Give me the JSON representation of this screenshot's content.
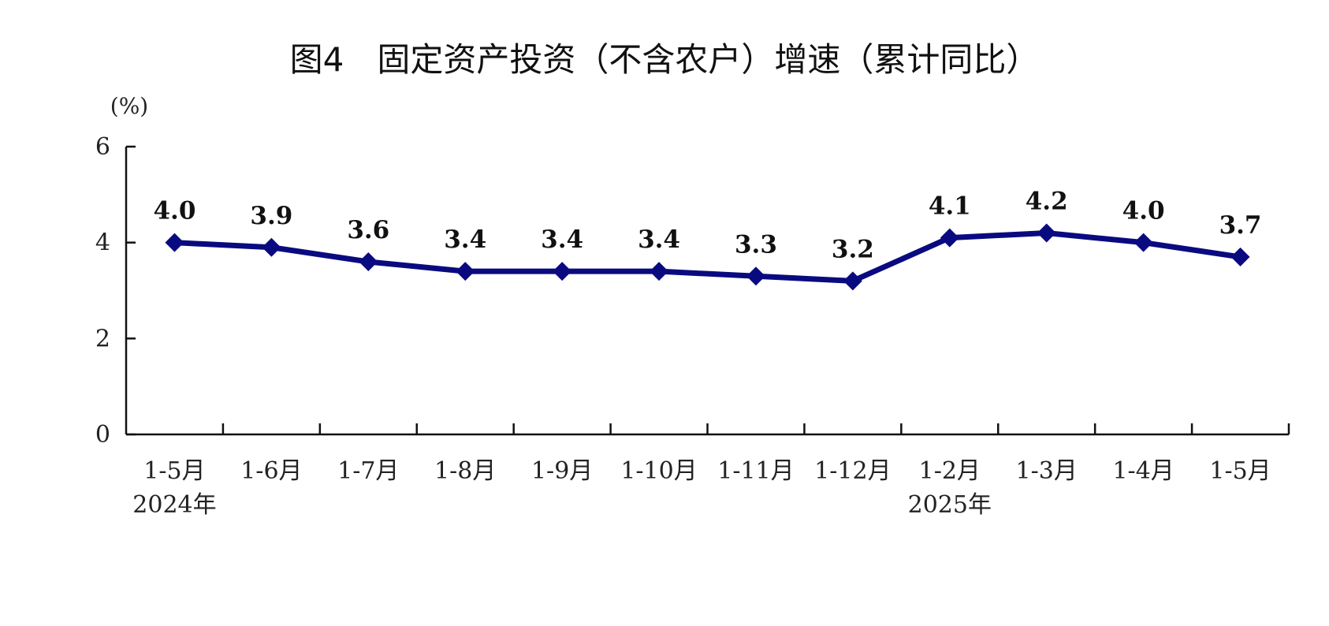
{
  "chart_data": {
    "type": "line",
    "title": "图4　固定资产投资（不含农户）增速（累计同比）",
    "y_unit": "(%)",
    "categories": [
      "1-5月",
      "1-6月",
      "1-7月",
      "1-8月",
      "1-9月",
      "1-10月",
      "1-11月",
      "1-12月",
      "1-2月",
      "1-3月",
      "1-4月",
      "1-5月"
    ],
    "year_labels": [
      {
        "category_index": 0,
        "text": "2024年"
      },
      {
        "category_index": 8,
        "text": "2025年"
      }
    ],
    "series": [
      {
        "values": [
          4.0,
          3.9,
          3.6,
          3.4,
          3.4,
          3.4,
          3.3,
          3.2,
          4.1,
          4.2,
          4.0,
          3.7
        ],
        "labels": [
          "4.0",
          "3.9",
          "3.6",
          "3.4",
          "3.4",
          "3.4",
          "3.3",
          "3.2",
          "4.1",
          "4.2",
          "4.0",
          "3.7"
        ],
        "color": "#0a0a80",
        "marker": "diamond"
      }
    ],
    "yticks": [
      0,
      2,
      4,
      6
    ],
    "ylim": [
      0,
      6
    ],
    "grid": false,
    "legend": "none"
  }
}
